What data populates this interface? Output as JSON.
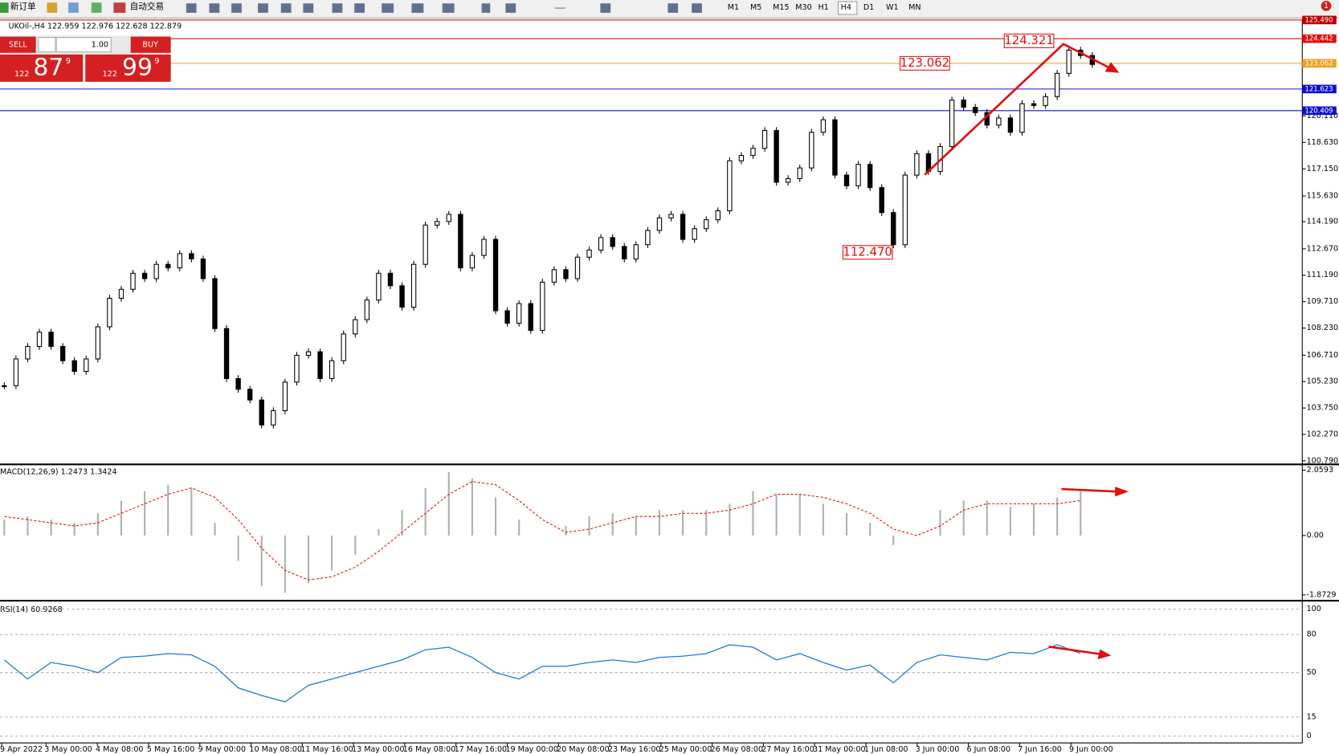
{
  "toolbar": {
    "new_order": "新订单",
    "auto_trading": "自动交易",
    "timeframes": [
      "M1",
      "M5",
      "M15",
      "M30",
      "H1",
      "H4",
      "D1",
      "W1",
      "MN"
    ],
    "notifications": "1"
  },
  "trade_panel": {
    "sell": "SELL",
    "lots": "1.00",
    "buy": "BUY",
    "bid_big": "122",
    "bid_main": "87",
    "bid_small": "9",
    "ask_big": "122",
    "ask_main": "99",
    "ask_small": "9"
  },
  "chart_data": [
    {
      "type": "candlestick",
      "title": "UKOil-,H4  122.959 122.976 122.628 122.879",
      "close": [
        105.0,
        106.5,
        107.2,
        108.0,
        107.2,
        106.4,
        105.8,
        106.5,
        108.3,
        109.9,
        110.4,
        111.3,
        111.0,
        111.8,
        111.6,
        112.4,
        112.1,
        111.0,
        108.2,
        105.4,
        104.8,
        104.2,
        102.8,
        103.6,
        105.2,
        106.7,
        106.9,
        105.4,
        106.4,
        107.9,
        108.7,
        109.8,
        111.3,
        110.6,
        109.4,
        111.8,
        114.0,
        114.2,
        114.6,
        111.6,
        112.3,
        113.2,
        109.2,
        108.5,
        109.6,
        108.1,
        110.8,
        111.5,
        111.0,
        112.2,
        112.6,
        113.3,
        112.8,
        112.1,
        112.9,
        113.7,
        114.4,
        114.6,
        113.2,
        113.8,
        114.3,
        114.8,
        117.6,
        117.9,
        118.3,
        119.3,
        116.4,
        116.6,
        117.2,
        119.2,
        119.9,
        116.8,
        116.2,
        117.4,
        116.1,
        114.7,
        112.9,
        116.8,
        118.0,
        117.0,
        118.4,
        121.0,
        120.6,
        120.3,
        119.6,
        120.0,
        119.2,
        120.8,
        120.7,
        121.2,
        122.5,
        123.8,
        123.5,
        123.0
      ],
      "ylim": [
        100.69,
        125.56
      ],
      "yticks": [
        {
          "value": 120.11,
          "label": "120.110"
        },
        {
          "value": 118.63,
          "label": "118.630"
        },
        {
          "value": 117.15,
          "label": "117.150"
        },
        {
          "value": 115.63,
          "label": "115.630"
        },
        {
          "value": 114.19,
          "label": "114.190"
        },
        {
          "value": 112.67,
          "label": "112.670"
        },
        {
          "value": 111.19,
          "label": "111.190"
        },
        {
          "value": 109.71,
          "label": "109.710"
        },
        {
          "value": 108.23,
          "label": "108.230"
        },
        {
          "value": 106.71,
          "label": "106.710"
        },
        {
          "value": 105.23,
          "label": "105.230"
        },
        {
          "value": 103.75,
          "label": "103.750"
        },
        {
          "value": 102.27,
          "label": "102.270"
        },
        {
          "value": 100.79,
          "label": "100.790"
        }
      ],
      "levels": [
        {
          "value": 125.49,
          "label": "125.490",
          "color": "#c00000"
        },
        {
          "value": 124.442,
          "color": "#e01010"
        },
        {
          "value": 123.062,
          "color": "#f0a020"
        },
        {
          "value": 121.623,
          "color": "#1010d0"
        },
        {
          "value": 120.409,
          "color": "#1010d0"
        }
      ],
      "annotations": [
        124.321,
        123.062,
        {
          "value": 112.47,
          "label": "112.470"
        }
      ]
    },
    {
      "type": "macd",
      "title": "MACD(12,26,9) 1.2473 1.3424",
      "values": [
        0.5,
        0.6,
        0.5,
        0.4,
        0.7,
        1.1,
        1.4,
        1.6,
        1.5,
        0.4,
        -0.8,
        -1.6,
        -1.8,
        -1.5,
        -1.1,
        -0.6,
        0.2,
        0.8,
        1.5,
        2.0,
        1.8,
        1.2,
        0.5,
        0.0,
        0.3,
        0.6,
        0.7,
        0.6,
        0.8,
        0.8,
        0.8,
        1.0,
        1.4,
        1.3,
        1.3,
        1.0,
        0.7,
        0.4,
        -0.3,
        0.0,
        0.8,
        1.1,
        1.1,
        0.9,
        1.0,
        1.2,
        1.4
      ],
      "signal": [
        0.6,
        0.5,
        0.4,
        0.3,
        0.4,
        0.7,
        1.0,
        1.3,
        1.5,
        1.2,
        0.5,
        -0.4,
        -1.1,
        -1.4,
        -1.3,
        -1.0,
        -0.5,
        0.1,
        0.7,
        1.3,
        1.7,
        1.6,
        1.1,
        0.5,
        0.1,
        0.2,
        0.4,
        0.6,
        0.6,
        0.7,
        0.7,
        0.8,
        1.0,
        1.3,
        1.3,
        1.2,
        1.0,
        0.7,
        0.2,
        0.0,
        0.3,
        0.8,
        1.0,
        1.0,
        1.0,
        1.0,
        1.1
      ],
      "ylim": [
        -2.0,
        2.19
      ],
      "yticks": [
        2.0593,
        {
          "value": 0,
          "label": "0.00"
        },
        -1.8729
      ]
    },
    {
      "type": "rsi",
      "title": "RSI(14) 60.9268",
      "values": [
        60,
        45,
        58,
        55,
        50,
        62,
        63,
        65,
        64,
        55,
        38,
        32,
        27,
        40,
        45,
        50,
        55,
        60,
        68,
        70,
        62,
        50,
        45,
        55,
        55,
        58,
        60,
        58,
        62,
        63,
        65,
        72,
        70,
        60,
        65,
        58,
        52,
        56,
        42,
        58,
        64,
        62,
        60,
        66,
        65,
        72,
        65
      ],
      "ylim": [
        0,
        100
      ],
      "yticks": [
        100,
        80,
        50,
        15,
        0
      ]
    }
  ],
  "x_labels": [
    "9 Apr 2022",
    "3 May 00:00",
    "4 May 08:00",
    "5 May 16:00",
    "9 May 00:00",
    "10 May 08:00",
    "11 May 16:00",
    "13 May 00:00",
    "16 May 08:00",
    "17 May 16:00",
    "19 May 00:00",
    "20 May 08:00",
    "23 May 16:00",
    "25 May 00:00",
    "26 May 08:00",
    "27 May 16:00",
    "31 May 00:00",
    "1 Jun 08:00",
    "3 Jun 00:00",
    "6 Jun 08:00",
    "7 Jun 16:00",
    "9 Jun 00:00"
  ]
}
